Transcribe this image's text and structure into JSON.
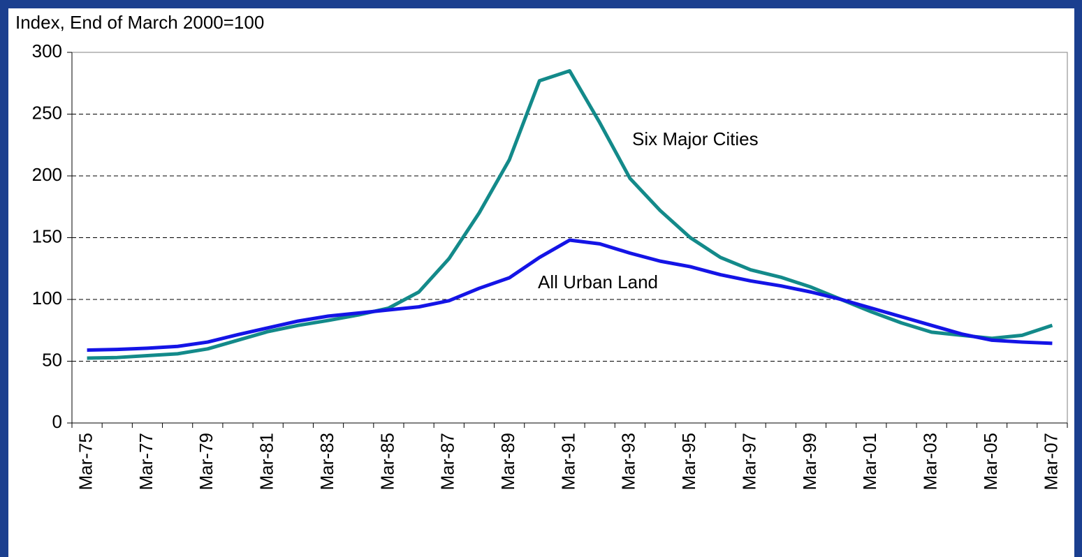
{
  "chart_data": {
    "type": "line",
    "y_axis_title": "Index, End of March 2000=100",
    "categories": [
      "Mar-75",
      null,
      "Mar-77",
      null,
      "Mar-79",
      null,
      "Mar-81",
      null,
      "Mar-83",
      null,
      "Mar-85",
      null,
      "Mar-87",
      null,
      "Mar-89",
      null,
      "Mar-91",
      null,
      "Mar-93",
      null,
      "Mar-95",
      null,
      "Mar-97",
      null,
      "Mar-99",
      null,
      "Mar-01",
      null,
      "Mar-03",
      null,
      "Mar-05",
      null,
      "Mar-07"
    ],
    "series": [
      {
        "name": "Six Major Cities",
        "color": "#138a8a",
        "values": [
          52.5,
          53,
          54.5,
          56,
          60,
          67,
          74,
          79,
          83,
          87.5,
          93,
          106,
          133,
          170,
          213,
          277,
          285,
          243,
          198,
          172,
          150,
          134,
          124,
          118,
          110,
          100,
          90,
          81,
          73.5,
          71,
          68.5,
          71,
          79
        ]
      },
      {
        "name": "All Urban Land",
        "color": "#1414e6",
        "values": [
          59,
          59.5,
          60.5,
          62,
          65.5,
          71.5,
          77,
          82.5,
          86.5,
          89,
          91.5,
          94,
          99,
          109,
          117.5,
          134,
          148,
          145,
          137.5,
          131,
          126.5,
          120,
          115,
          111,
          106,
          100,
          93,
          86,
          79,
          72,
          67,
          65.5,
          64.5
        ]
      }
    ],
    "ylim": [
      0,
      300
    ],
    "yticks": [
      0,
      50,
      100,
      150,
      200,
      250,
      300
    ],
    "grid": true
  }
}
